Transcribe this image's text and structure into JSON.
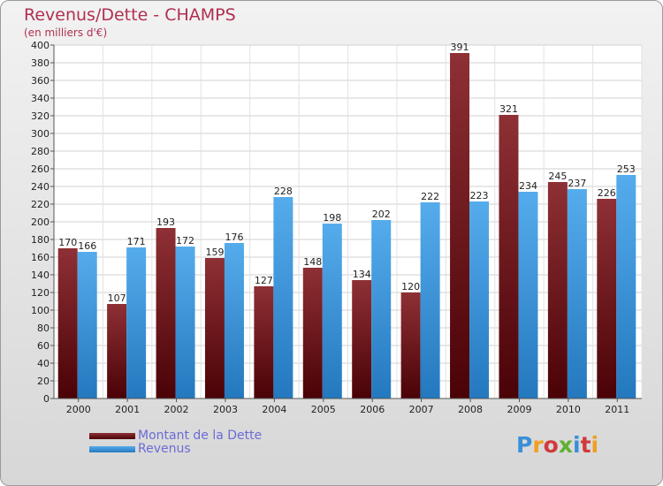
{
  "title": "Revenus/Dette - CHAMPS",
  "subtitle": "(en milliers d'€)",
  "colors": {
    "dette": "#7a1d22",
    "revenus": "#3a98e0",
    "title": "#b03050"
  },
  "legend": {
    "dette": "Montant de la Dette",
    "revenus": "Revenus"
  },
  "logo": {
    "text": "Proxiti"
  },
  "chart_data": {
    "type": "bar",
    "categories": [
      "2000",
      "2001",
      "2002",
      "2003",
      "2004",
      "2005",
      "2006",
      "2007",
      "2008",
      "2009",
      "2010",
      "2011"
    ],
    "series": [
      {
        "name": "Montant de la Dette",
        "values": [
          170,
          107,
          193,
          159,
          127,
          148,
          134,
          120,
          391,
          321,
          245,
          226
        ]
      },
      {
        "name": "Revenus",
        "values": [
          166,
          171,
          172,
          176,
          228,
          198,
          202,
          222,
          223,
          234,
          237,
          253
        ]
      }
    ],
    "ylim": [
      0,
      400
    ],
    "yticks": [
      0,
      20,
      40,
      60,
      80,
      100,
      120,
      140,
      160,
      180,
      200,
      220,
      240,
      260,
      280,
      300,
      320,
      340,
      360,
      380,
      400
    ],
    "grid": true,
    "legend_position": "bottom-left"
  }
}
